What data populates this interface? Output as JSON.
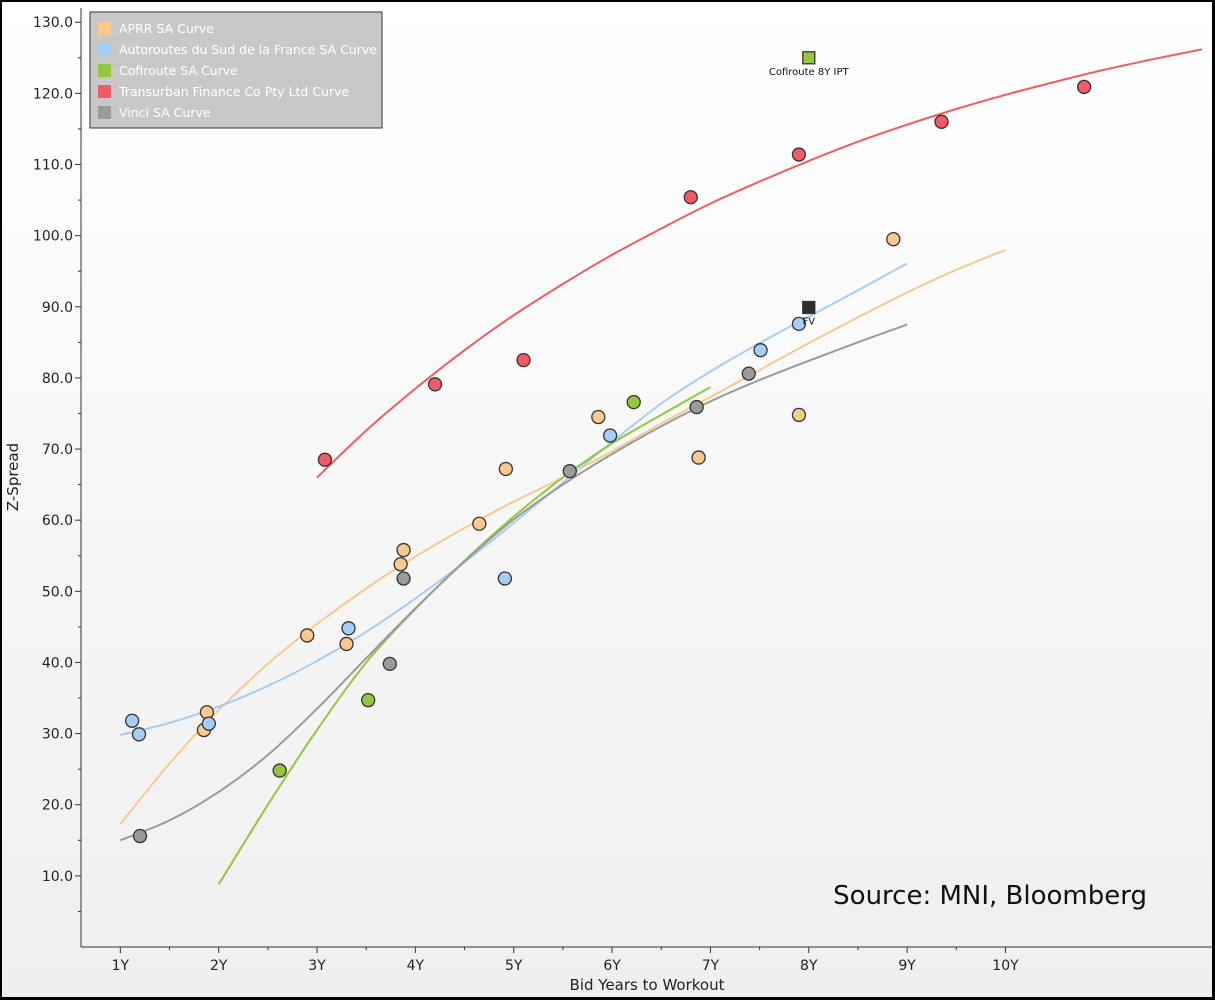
{
  "chart_data": {
    "type": "scatter",
    "title": "",
    "xlabel": "Bid Years to Workout",
    "ylabel": "Z-Spread",
    "xlim": [
      0.6,
      12.1
    ],
    "ylim": [
      0,
      132
    ],
    "x_ticks": [
      1,
      2,
      3,
      4,
      5,
      6,
      7,
      8,
      9,
      10
    ],
    "x_tick_labels": [
      "1Y",
      "2Y",
      "3Y",
      "4Y",
      "5Y",
      "6Y",
      "7Y",
      "8Y",
      "9Y",
      "10Y"
    ],
    "y_ticks": [
      10,
      20,
      30,
      40,
      50,
      60,
      70,
      80,
      90,
      100,
      110,
      120,
      130
    ],
    "y_tick_labels": [
      "10.0",
      "20.0",
      "30.0",
      "40.0",
      "50.0",
      "60.0",
      "70.0",
      "80.0",
      "90.0",
      "100.0",
      "110.0",
      "120.0",
      "130.0"
    ],
    "grid": false,
    "legend_position": "top-left",
    "source_note": "Source: MNI, Bloomberg",
    "series": [
      {
        "name": "APRR SA Curve",
        "color": "#f9c98e",
        "points": [
          [
            1.85,
            30.5
          ],
          [
            1.88,
            33.0
          ],
          [
            2.9,
            43.8
          ],
          [
            3.3,
            42.6
          ],
          [
            3.85,
            53.8
          ],
          [
            3.88,
            55.8
          ],
          [
            4.65,
            59.5
          ],
          [
            4.92,
            67.2
          ],
          [
            5.86,
            74.5
          ],
          [
            6.88,
            68.8
          ],
          [
            7.9,
            74.8
          ],
          [
            8.86,
            99.5
          ]
        ],
        "curve": [
          [
            1.0,
            17.3
          ],
          [
            1.5,
            25.8
          ],
          [
            2.0,
            33.3
          ],
          [
            2.5,
            39.8
          ],
          [
            3.0,
            45.4
          ],
          [
            3.5,
            50.4
          ],
          [
            4.0,
            54.9
          ],
          [
            4.5,
            58.9
          ],
          [
            5.0,
            62.6
          ],
          [
            5.5,
            66.0
          ],
          [
            6.0,
            69.7
          ],
          [
            6.5,
            73.6
          ],
          [
            7.0,
            77.3
          ],
          [
            7.5,
            81.1
          ],
          [
            8.0,
            84.9
          ],
          [
            8.5,
            88.5
          ],
          [
            9.0,
            92.0
          ],
          [
            9.5,
            95.2
          ],
          [
            10.0,
            98.0
          ]
        ]
      },
      {
        "name": "Autoroutes du Sud de la France SA Curve",
        "color": "#a5cdf6",
        "points": [
          [
            1.12,
            31.8
          ],
          [
            1.19,
            29.9
          ],
          [
            1.9,
            31.4
          ],
          [
            3.32,
            44.8
          ],
          [
            4.91,
            51.8
          ],
          [
            5.98,
            71.9
          ],
          [
            7.51,
            83.9
          ],
          [
            7.9,
            87.6
          ]
        ],
        "curve": [
          [
            1.0,
            29.8
          ],
          [
            1.5,
            31.5
          ],
          [
            2.0,
            33.8
          ],
          [
            2.5,
            36.7
          ],
          [
            3.0,
            40.2
          ],
          [
            3.5,
            44.3
          ],
          [
            4.0,
            49.0
          ],
          [
            4.5,
            54.1
          ],
          [
            5.0,
            59.6
          ],
          [
            5.5,
            65.3
          ],
          [
            6.0,
            71.0
          ],
          [
            6.5,
            76.4
          ],
          [
            7.0,
            80.9
          ],
          [
            7.5,
            84.9
          ],
          [
            8.0,
            88.6
          ],
          [
            8.5,
            92.3
          ],
          [
            9.0,
            96.1
          ]
        ]
      },
      {
        "name": "Cofiroute SA Curve",
        "color": "#93c83e",
        "points": [
          [
            2.62,
            24.8
          ],
          [
            3.52,
            34.7
          ],
          [
            6.22,
            76.6
          ]
        ],
        "curve": [
          [
            2.0,
            8.8
          ],
          [
            2.5,
            20.0
          ],
          [
            3.0,
            30.5
          ],
          [
            3.5,
            40.0
          ],
          [
            4.0,
            47.5
          ],
          [
            4.5,
            54.3
          ],
          [
            5.0,
            60.5
          ],
          [
            5.5,
            66.0
          ],
          [
            6.0,
            70.8
          ],
          [
            6.5,
            74.8
          ],
          [
            7.0,
            78.7
          ]
        ]
      },
      {
        "name": "Transurban Finance Co Pty Ltd Curve",
        "color": "#ef5b66",
        "points": [
          [
            3.08,
            68.5
          ],
          [
            4.2,
            79.1
          ],
          [
            5.1,
            82.5
          ],
          [
            6.8,
            105.4
          ],
          [
            7.9,
            111.4
          ],
          [
            9.35,
            116.0
          ],
          [
            10.8,
            120.9
          ]
        ],
        "curve": [
          [
            3.0,
            66.0
          ],
          [
            3.5,
            72.6
          ],
          [
            4.0,
            78.5
          ],
          [
            4.5,
            83.9
          ],
          [
            5.0,
            88.8
          ],
          [
            5.5,
            93.2
          ],
          [
            6.0,
            97.3
          ],
          [
            6.5,
            101.0
          ],
          [
            7.0,
            104.5
          ],
          [
            7.5,
            107.6
          ],
          [
            8.0,
            110.5
          ],
          [
            8.5,
            113.2
          ],
          [
            9.0,
            115.6
          ],
          [
            9.5,
            117.8
          ],
          [
            10.0,
            119.8
          ],
          [
            10.5,
            121.6
          ],
          [
            11.0,
            123.3
          ],
          [
            11.5,
            124.8
          ],
          [
            12.0,
            126.2
          ]
        ]
      },
      {
        "name": "Vinci SA Curve",
        "color": "#9a9a9a",
        "points": [
          [
            1.2,
            15.6
          ],
          [
            3.74,
            39.8
          ],
          [
            3.88,
            51.8
          ],
          [
            5.57,
            66.9
          ],
          [
            6.86,
            75.9
          ],
          [
            7.39,
            80.6
          ]
        ],
        "curve": [
          [
            1.0,
            15.0
          ],
          [
            1.5,
            17.8
          ],
          [
            2.0,
            21.8
          ],
          [
            2.5,
            27.0
          ],
          [
            3.0,
            33.5
          ],
          [
            3.5,
            40.6
          ],
          [
            4.0,
            47.6
          ],
          [
            4.5,
            54.2
          ],
          [
            5.0,
            60.1
          ],
          [
            5.5,
            65.0
          ],
          [
            6.0,
            69.3
          ],
          [
            6.5,
            73.2
          ],
          [
            7.0,
            76.7
          ],
          [
            7.5,
            79.7
          ],
          [
            8.0,
            82.4
          ],
          [
            8.5,
            85.0
          ],
          [
            9.0,
            87.5
          ]
        ]
      }
    ],
    "annotations": [
      {
        "label": "Cofiroute 8Y IPT",
        "x": 8.0,
        "y": 125.0,
        "marker": "square",
        "color": "#93c83e"
      },
      {
        "label": "FV",
        "x": 8.0,
        "y": 89.9,
        "marker": "square",
        "color": "#2e2e2e"
      }
    ]
  }
}
